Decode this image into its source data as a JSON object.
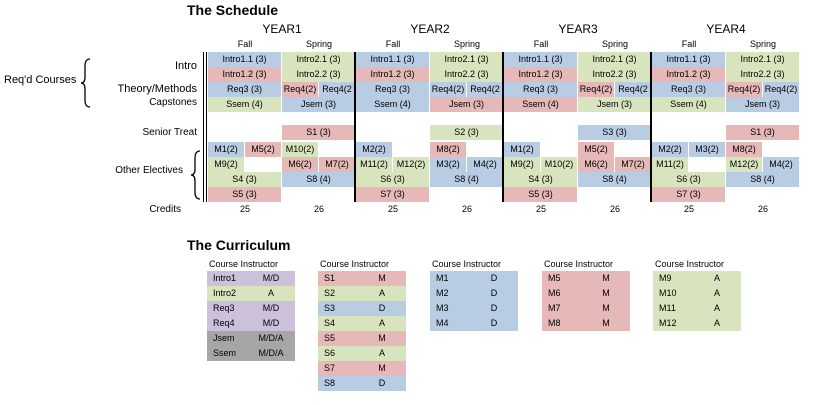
{
  "colors": {
    "blue": "#b8cce4",
    "green": "#d7e4bd",
    "red": "#e6b9b8",
    "purple": "#ccc0da",
    "gray": "#a6a6a6"
  },
  "schedule": {
    "title": "The Schedule",
    "years": [
      "YEAR1",
      "YEAR2",
      "YEAR3",
      "YEAR4"
    ],
    "semesters": [
      "Fall",
      "Spring",
      "Fall",
      "Spring",
      "Fall",
      "Spring",
      "Fall",
      "Spring"
    ],
    "row_labels": {
      "reqd_courses": "Req'd Courses",
      "intro": "Intro",
      "theory": "Theory/Methods",
      "capstones": "Capstones",
      "senior_treat": "Senior Treat",
      "other_electives": "Other Electives",
      "credits": "Credits"
    },
    "credits": [
      "25",
      "26",
      "25",
      "26",
      "25",
      "26",
      "25",
      "26"
    ],
    "cells": [
      {
        "sem": 0,
        "row": 0,
        "text": "Intro1.1 (3)",
        "color": "blue"
      },
      {
        "sem": 1,
        "row": 0,
        "text": "Intro2.1 (3)",
        "color": "green"
      },
      {
        "sem": 2,
        "row": 0,
        "text": "Intro1.1 (3)",
        "color": "blue"
      },
      {
        "sem": 3,
        "row": 0,
        "text": "Intro2.1 (3)",
        "color": "green"
      },
      {
        "sem": 4,
        "row": 0,
        "text": "Intro1.1 (3)",
        "color": "blue"
      },
      {
        "sem": 5,
        "row": 0,
        "text": "Intro2.1 (3)",
        "color": "green"
      },
      {
        "sem": 6,
        "row": 0,
        "text": "Intro1.1 (3)",
        "color": "blue"
      },
      {
        "sem": 7,
        "row": 0,
        "text": "Intro2.1 (3)",
        "color": "green"
      },
      {
        "sem": 0,
        "row": 1,
        "text": "Intro1.2 (3)",
        "color": "red"
      },
      {
        "sem": 1,
        "row": 1,
        "text": "Intro2.2 (3)",
        "color": "green"
      },
      {
        "sem": 2,
        "row": 1,
        "text": "Intro1.2 (3)",
        "color": "red"
      },
      {
        "sem": 3,
        "row": 1,
        "text": "Intro2.2 (3)",
        "color": "green"
      },
      {
        "sem": 4,
        "row": 1,
        "text": "Intro1.2 (3)",
        "color": "red"
      },
      {
        "sem": 5,
        "row": 1,
        "text": "Intro2.2 (3)",
        "color": "green"
      },
      {
        "sem": 6,
        "row": 1,
        "text": "Intro1.2 (3)",
        "color": "red"
      },
      {
        "sem": 7,
        "row": 1,
        "text": "Intro2.2 (3)",
        "color": "green"
      },
      {
        "sem": 0,
        "row": 2,
        "text": "Req3 (3)",
        "color": "blue"
      },
      {
        "sem": 1,
        "half": 0,
        "row": 2,
        "text": "Req4(2)",
        "color": "red"
      },
      {
        "sem": 1,
        "half": 1,
        "row": 2,
        "text": "Req4(2",
        "color": "blue"
      },
      {
        "sem": 2,
        "row": 2,
        "text": "Req3 (3)",
        "color": "blue"
      },
      {
        "sem": 3,
        "half": 0,
        "row": 2,
        "text": "Req4(2)",
        "color": "blue"
      },
      {
        "sem": 3,
        "half": 1,
        "row": 2,
        "text": "Req4(2",
        "color": "blue"
      },
      {
        "sem": 4,
        "row": 2,
        "text": "Req3 (3)",
        "color": "blue"
      },
      {
        "sem": 5,
        "half": 0,
        "row": 2,
        "text": "Req4(2)",
        "color": "red"
      },
      {
        "sem": 5,
        "half": 1,
        "row": 2,
        "text": "Req4(2",
        "color": "blue"
      },
      {
        "sem": 6,
        "row": 2,
        "text": "Req3 (3)",
        "color": "blue"
      },
      {
        "sem": 7,
        "half": 0,
        "row": 2,
        "text": "Req4(2)",
        "color": "red"
      },
      {
        "sem": 7,
        "half": 1,
        "row": 2,
        "text": "Req4(2)",
        "color": "blue"
      },
      {
        "sem": 0,
        "row": 3,
        "text": "Ssem (4)",
        "color": "green"
      },
      {
        "sem": 1,
        "row": 3,
        "text": "Jsem (3)",
        "color": "blue"
      },
      {
        "sem": 2,
        "row": 3,
        "text": "Ssem (4)",
        "color": "blue"
      },
      {
        "sem": 3,
        "row": 3,
        "text": "Jsem (3)",
        "color": "red"
      },
      {
        "sem": 4,
        "row": 3,
        "text": "Ssem (4)",
        "color": "red"
      },
      {
        "sem": 5,
        "row": 3,
        "text": "Jsem (3)",
        "color": "green"
      },
      {
        "sem": 6,
        "row": 3,
        "text": "Ssem (4)",
        "color": "green"
      },
      {
        "sem": 7,
        "row": 3,
        "text": "Jsem (3)",
        "color": "blue"
      },
      {
        "sem": 1,
        "row": 4,
        "text": "S1 (3)",
        "color": "red"
      },
      {
        "sem": 3,
        "row": 4,
        "text": "S2 (3)",
        "color": "green"
      },
      {
        "sem": 5,
        "row": 4,
        "text": "S3 (3)",
        "color": "blue"
      },
      {
        "sem": 7,
        "row": 4,
        "text": "S1 (3)",
        "color": "red"
      },
      {
        "sem": 0,
        "half": 0,
        "row": 5,
        "text": "M1(2)",
        "color": "blue"
      },
      {
        "sem": 0,
        "half": 1,
        "row": 5,
        "text": "M5(2)",
        "color": "red"
      },
      {
        "sem": 1,
        "half": 0,
        "row": 5,
        "text": "M10(2)",
        "color": "green"
      },
      {
        "sem": 2,
        "half": 0,
        "row": 5,
        "text": "M2(2)",
        "color": "blue"
      },
      {
        "sem": 3,
        "half": 0,
        "row": 5,
        "text": "M8(2)",
        "color": "red"
      },
      {
        "sem": 4,
        "half": 0,
        "row": 5,
        "text": "M1(2)",
        "color": "blue"
      },
      {
        "sem": 5,
        "half": 0,
        "row": 5,
        "text": "M5(2)",
        "color": "red"
      },
      {
        "sem": 6,
        "half": 0,
        "row": 5,
        "text": "M2(2)",
        "color": "blue"
      },
      {
        "sem": 6,
        "half": 1,
        "row": 5,
        "text": "M3(2)",
        "color": "blue"
      },
      {
        "sem": 7,
        "half": 0,
        "row": 5,
        "text": "M8(2)",
        "color": "red"
      },
      {
        "sem": 0,
        "half": 0,
        "row": 6,
        "text": "M9(2)",
        "color": "green"
      },
      {
        "sem": 1,
        "half": 0,
        "row": 6,
        "text": "M6(2)",
        "color": "red"
      },
      {
        "sem": 1,
        "half": 1,
        "row": 6,
        "text": "M7(2)",
        "color": "red"
      },
      {
        "sem": 2,
        "half": 0,
        "row": 6,
        "text": "M11(2)",
        "color": "green"
      },
      {
        "sem": 2,
        "half": 1,
        "row": 6,
        "text": "M12(2)",
        "color": "green"
      },
      {
        "sem": 3,
        "half": 0,
        "row": 6,
        "text": "M3(2)",
        "color": "blue"
      },
      {
        "sem": 3,
        "half": 1,
        "row": 6,
        "text": "M4(2)",
        "color": "blue"
      },
      {
        "sem": 4,
        "half": 0,
        "row": 6,
        "text": "M9(2)",
        "color": "green"
      },
      {
        "sem": 4,
        "half": 1,
        "row": 6,
        "text": "M10(2)",
        "color": "green"
      },
      {
        "sem": 5,
        "half": 0,
        "row": 6,
        "text": "M6(2)",
        "color": "red"
      },
      {
        "sem": 5,
        "half": 1,
        "row": 6,
        "text": "M7(2)",
        "color": "red"
      },
      {
        "sem": 6,
        "half": 0,
        "row": 6,
        "text": "M11(2)",
        "color": "green"
      },
      {
        "sem": 7,
        "half": 0,
        "row": 6,
        "text": "M12(2)",
        "color": "green"
      },
      {
        "sem": 7,
        "half": 1,
        "row": 6,
        "text": "M4(2)",
        "color": "blue"
      },
      {
        "sem": 0,
        "row": 7,
        "text": "S4 (3)",
        "color": "green"
      },
      {
        "sem": 1,
        "row": 7,
        "text": "S8 (4)",
        "color": "blue"
      },
      {
        "sem": 2,
        "row": 7,
        "text": "S6 (3)",
        "color": "green"
      },
      {
        "sem": 3,
        "row": 7,
        "text": "S8 (4)",
        "color": "blue"
      },
      {
        "sem": 4,
        "row": 7,
        "text": "S4 (3)",
        "color": "green"
      },
      {
        "sem": 5,
        "row": 7,
        "text": "S8 (4)",
        "color": "blue"
      },
      {
        "sem": 6,
        "row": 7,
        "text": "S6 (3)",
        "color": "green"
      },
      {
        "sem": 7,
        "row": 7,
        "text": "S8 (4)",
        "color": "blue"
      },
      {
        "sem": 0,
        "row": 8,
        "text": "S5 (3)",
        "color": "red"
      },
      {
        "sem": 2,
        "row": 8,
        "text": "S7 (3)",
        "color": "red"
      },
      {
        "sem": 4,
        "row": 8,
        "text": "S5 (3)",
        "color": "red"
      },
      {
        "sem": 6,
        "row": 8,
        "text": "S7 (3)",
        "color": "red"
      }
    ]
  },
  "curriculum": {
    "title": "The Curriculum",
    "tables": [
      {
        "header": [
          "Course",
          "Instructor"
        ],
        "rows": [
          {
            "course": "Intro1",
            "instructor": "M/D",
            "color": "purple"
          },
          {
            "course": "Intro2",
            "instructor": "A",
            "color": "green"
          },
          {
            "course": "Req3",
            "instructor": "M/D",
            "color": "purple"
          },
          {
            "course": "Req4",
            "instructor": "M/D",
            "color": "purple"
          },
          {
            "course": "Jsem",
            "instructor": "M/D/A",
            "color": "gray"
          },
          {
            "course": "Ssem",
            "instructor": "M/D/A",
            "color": "gray"
          }
        ]
      },
      {
        "header": [
          "Course",
          "Instructor"
        ],
        "rows": [
          {
            "course": "S1",
            "instructor": "M",
            "color": "red"
          },
          {
            "course": "S2",
            "instructor": "A",
            "color": "green"
          },
          {
            "course": "S3",
            "instructor": "D",
            "color": "blue"
          },
          {
            "course": "S4",
            "instructor": "A",
            "color": "green"
          },
          {
            "course": "S5",
            "instructor": "M",
            "color": "red"
          },
          {
            "course": "S6",
            "instructor": "A",
            "color": "green"
          },
          {
            "course": "S7",
            "instructor": "M",
            "color": "red"
          },
          {
            "course": "S8",
            "instructor": "D",
            "color": "blue"
          }
        ]
      },
      {
        "header": [
          "Course",
          "Instructor"
        ],
        "rows": [
          {
            "course": "M1",
            "instructor": "D",
            "color": "blue"
          },
          {
            "course": "M2",
            "instructor": "D",
            "color": "blue"
          },
          {
            "course": "M3",
            "instructor": "D",
            "color": "blue"
          },
          {
            "course": "M4",
            "instructor": "D",
            "color": "blue"
          }
        ]
      },
      {
        "header": [
          "Course",
          "Instructor"
        ],
        "rows": [
          {
            "course": "M5",
            "instructor": "M",
            "color": "red"
          },
          {
            "course": "M6",
            "instructor": "M",
            "color": "red"
          },
          {
            "course": "M7",
            "instructor": "M",
            "color": "red"
          },
          {
            "course": "M8",
            "instructor": "M",
            "color": "red"
          }
        ]
      },
      {
        "header": [
          "Course",
          "Instructor"
        ],
        "rows": [
          {
            "course": "M9",
            "instructor": "A",
            "color": "green"
          },
          {
            "course": "M10",
            "instructor": "A",
            "color": "green"
          },
          {
            "course": "M11",
            "instructor": "A",
            "color": "green"
          },
          {
            "course": "M12",
            "instructor": "A",
            "color": "green"
          }
        ]
      }
    ]
  }
}
